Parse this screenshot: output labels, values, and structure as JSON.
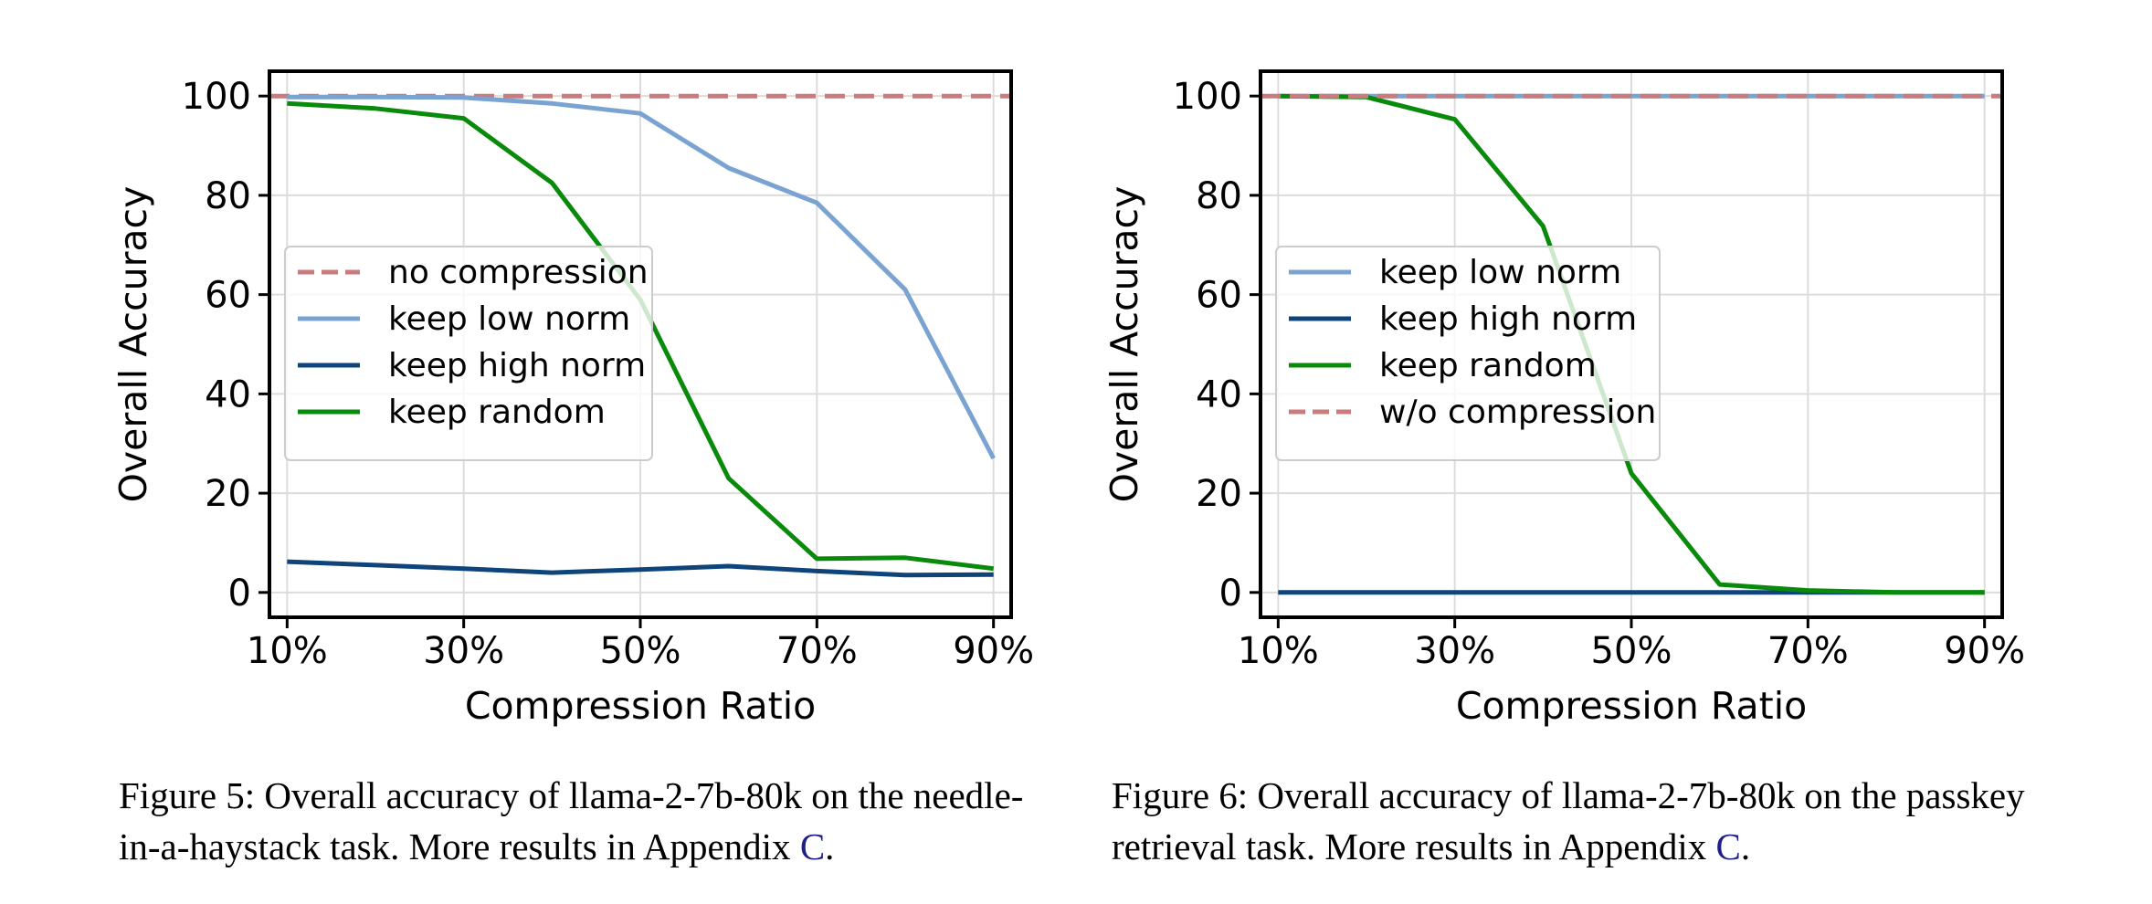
{
  "colors": {
    "no_compression": "#c97b7e",
    "keep_low_norm": "#7ba3d1",
    "keep_high_norm": "#0e447a",
    "keep_random": "#0a8a0a"
  },
  "chart_data": [
    {
      "type": "line",
      "xlabel": "Compression Ratio",
      "ylabel": "Overall Accuracy",
      "x": [
        0.1,
        0.2,
        0.3,
        0.4,
        0.5,
        0.6,
        0.7,
        0.8,
        0.9
      ],
      "xlim": [
        0.08,
        0.92
      ],
      "ylim": [
        -5,
        105
      ],
      "xticks": [
        0.1,
        0.3,
        0.5,
        0.7,
        0.9
      ],
      "xtick_labels": [
        "10%",
        "30%",
        "50%",
        "70%",
        "90%"
      ],
      "yticks": [
        0,
        20,
        40,
        60,
        80,
        100
      ],
      "ytick_labels": [
        "0",
        "20",
        "40",
        "60",
        "80",
        "100"
      ],
      "grid": true,
      "legend_position": "center-left",
      "series": [
        {
          "name": "no compression",
          "style": "dashed",
          "color_key": "no_compression",
          "values": [
            100,
            100,
            100,
            100,
            100,
            100,
            100,
            100,
            100
          ]
        },
        {
          "name": "keep low norm",
          "style": "solid",
          "color_key": "keep_low_norm",
          "values": [
            99.8,
            99.8,
            99.7,
            98.5,
            96.5,
            85.5,
            78.5,
            61.0,
            27.0
          ]
        },
        {
          "name": "keep high norm",
          "style": "solid",
          "color_key": "keep_high_norm",
          "values": [
            6.2,
            5.5,
            4.8,
            4.0,
            4.6,
            5.3,
            4.3,
            3.5,
            3.6
          ]
        },
        {
          "name": "keep random",
          "style": "solid",
          "color_key": "keep_random",
          "values": [
            98.5,
            97.5,
            95.5,
            82.5,
            59.0,
            23.0,
            6.8,
            7.0,
            4.8
          ]
        }
      ]
    },
    {
      "type": "line",
      "xlabel": "Compression Ratio",
      "ylabel": "Overall Accuracy",
      "x": [
        0.1,
        0.2,
        0.3,
        0.4,
        0.5,
        0.6,
        0.7,
        0.8,
        0.9
      ],
      "xlim": [
        0.08,
        0.92
      ],
      "ylim": [
        -5,
        105
      ],
      "xticks": [
        0.1,
        0.3,
        0.5,
        0.7,
        0.9
      ],
      "xtick_labels": [
        "10%",
        "30%",
        "50%",
        "70%",
        "90%"
      ],
      "yticks": [
        0,
        20,
        40,
        60,
        80,
        100
      ],
      "ytick_labels": [
        "0",
        "20",
        "40",
        "60",
        "80",
        "100"
      ],
      "grid": true,
      "legend_position": "center-left",
      "series": [
        {
          "name": "keep low norm",
          "style": "solid",
          "color_key": "keep_low_norm",
          "values": [
            100,
            100,
            100,
            100,
            100,
            100,
            100,
            100,
            100
          ]
        },
        {
          "name": "keep high norm",
          "style": "solid",
          "color_key": "keep_high_norm",
          "values": [
            0,
            0,
            0,
            0,
            0,
            0,
            0,
            0,
            0
          ]
        },
        {
          "name": "keep random",
          "style": "solid",
          "color_key": "keep_random",
          "values": [
            100,
            99.8,
            95.3,
            73.8,
            24.0,
            1.6,
            0.4,
            0.0,
            0.0
          ]
        },
        {
          "name": "w/o compression",
          "style": "dashed",
          "color_key": "no_compression",
          "values": [
            100,
            100,
            100,
            100,
            100,
            100,
            100,
            100,
            100
          ]
        }
      ]
    }
  ],
  "captions": [
    {
      "prefix": "Figure 5: Overall accuracy of llama-2-7b-80k on the needle-in-a-haystack task. More results in Appendix ",
      "link": "C",
      "suffix": "."
    },
    {
      "prefix": "Figure 6: Overall accuracy of llama-2-7b-80k on the passkey retrieval task. More results in Appendix ",
      "link": "C",
      "suffix": "."
    }
  ]
}
